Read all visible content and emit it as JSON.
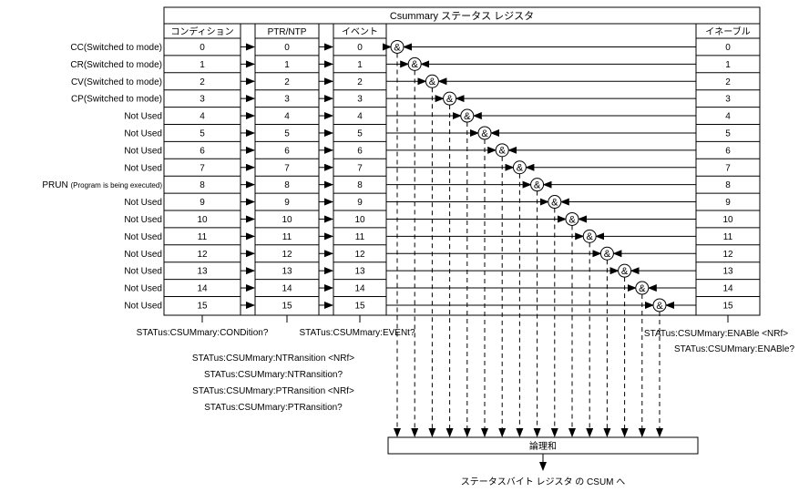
{
  "title": "Csummary ステータス レジスタ",
  "headers": {
    "condition": "コンディション",
    "ptr_ntp": "PTR/NTP",
    "event": "イベント",
    "enable": "イネーブル"
  },
  "bits": [
    "0",
    "1",
    "2",
    "3",
    "4",
    "5",
    "6",
    "7",
    "8",
    "9",
    "10",
    "11",
    "12",
    "13",
    "14",
    "15"
  ],
  "condition_labels": [
    "CC(Switched to mode)",
    "CR(Switched to mode)",
    "CV(Switched to mode)",
    "CP(Switched to mode)",
    "Not Used",
    "Not Used",
    "Not Used",
    "Not Used",
    "PRUN (Program is being executed)",
    "Not Used",
    "Not Used",
    "Not Used",
    "Not Used",
    "Not Used",
    "Not Used",
    "Not Used"
  ],
  "and_symbol": "&",
  "commands": {
    "condition_query": "STATus:CSUMmary:CONDition?",
    "event_query": "STATus:CSUMmary:EVENt?",
    "ntr_set": "STATus:CSUMmary:NTRansition <NRf>",
    "ntr_query": "STATus:CSUMmary:NTRansition?",
    "ptr_set": "STATus:CSUMmary:PTRansition <NRf>",
    "ptr_query": "STATus:CSUMmary:PTRansition?",
    "enable_set": "STATus:CSUMmary:ENABle <NRf>",
    "enable_query": "STATus:CSUMmary:ENABle?"
  },
  "logic_or": "論理和",
  "output_label": "ステータスバイト レジスタ の CSUM へ"
}
